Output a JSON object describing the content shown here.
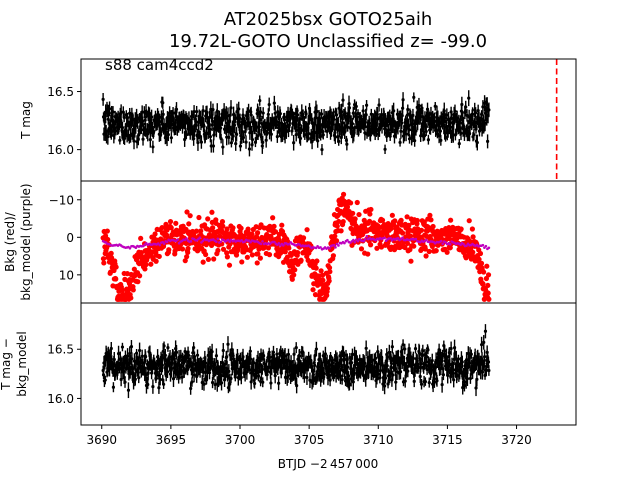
{
  "title_line1": "AT2025bsx  GOTO25aih",
  "title_line2": "19.72L-GOTO Unclassified z= -99.0",
  "chart_data": [
    {
      "type": "scatter",
      "panel": "top",
      "annotation": "s88 cam4ccd2",
      "ylabel": "T mag",
      "y_inverted": true,
      "ylim": [
        16.78,
        15.73
      ],
      "yticks": [
        "16.0",
        "16.5"
      ],
      "ytick_values": [
        16.0,
        16.5
      ],
      "series": [
        {
          "color": "#000000",
          "x_range": [
            3690.1,
            3718.0
          ],
          "y_center": 16.22,
          "y_scatter": 0.17,
          "ingress_gaps": [
            3690.2,
            3691.0,
            3691.9
          ]
        }
      ],
      "vline": {
        "x": 3722.9,
        "color": "#ff0000",
        "style": "dashed"
      }
    },
    {
      "type": "scatter",
      "panel": "middle",
      "ylabel_line1": "Bkg (red)/",
      "ylabel_line2": "bkg_model (purple)",
      "ylim": [
        -15,
        17.5
      ],
      "yticks": [
        "10",
        "0",
        "−10"
      ],
      "ytick_values": [
        10,
        0,
        -10
      ],
      "series": [
        {
          "color": "#ff0000",
          "role": "background",
          "x": [
            3690.1,
            3690.4,
            3690.8,
            3691.2,
            3691.6,
            3692.0,
            3692.3,
            3692.8,
            3693.5,
            3694.5,
            3695.5,
            3696.5,
            3697.5,
            3698.5,
            3699.5,
            3700.5,
            3701.5,
            3702.5,
            3703.3,
            3703.8,
            3704.2,
            3704.6,
            3705.0,
            3705.5,
            3706.0,
            3706.4,
            3706.8,
            3707.2,
            3707.6,
            3708.0,
            3708.5,
            3709.5,
            3710.5,
            3711.5,
            3712.5,
            3713.5,
            3714.5,
            3715.5,
            3716.3,
            3716.9,
            3717.3,
            3717.7,
            3718.0
          ],
          "y": [
            1.0,
            3.0,
            8.0,
            14.0,
            15.0,
            14.5,
            11.0,
            6.0,
            3.0,
            0.8,
            0.5,
            0.0,
            0.3,
            0.6,
            0.5,
            1.0,
            0.8,
            1.2,
            2.5,
            7.0,
            4.0,
            2.0,
            5.0,
            10.0,
            15.0,
            10.0,
            -1.0,
            -6.0,
            -9.0,
            -4.0,
            -2.0,
            -1.5,
            -1.0,
            -0.8,
            -0.5,
            -0.3,
            0.0,
            0.3,
            1.0,
            3.0,
            8.0,
            13.0,
            15.0
          ],
          "scatter": 3.0
        },
        {
          "color": "#bf00bf",
          "role": "bkg_model",
          "x": [
            3690.1,
            3691.0,
            3692.0,
            3693.0,
            3694.0,
            3695.0,
            3696.0,
            3697.0,
            3698.0,
            3699.0,
            3700.0,
            3701.0,
            3702.0,
            3703.0,
            3704.0,
            3705.0,
            3706.0,
            3707.0,
            3708.0,
            3709.0,
            3710.0,
            3711.0,
            3712.0,
            3713.0,
            3714.0,
            3715.0,
            3716.0,
            3717.0,
            3718.0
          ],
          "y": [
            1.5,
            2.0,
            2.8,
            2.2,
            1.5,
            1.0,
            0.8,
            0.6,
            0.8,
            1.0,
            1.0,
            1.2,
            1.5,
            1.8,
            2.0,
            2.5,
            3.0,
            2.0,
            1.0,
            0.5,
            0.3,
            0.5,
            0.8,
            1.0,
            1.2,
            1.5,
            1.8,
            2.2,
            2.5
          ]
        }
      ]
    },
    {
      "type": "scatter",
      "panel": "bottom",
      "ylabel_line1": "T mag −",
      "ylabel_line2": "bkg_model",
      "y_inverted": true,
      "ylim": [
        16.97,
        15.73
      ],
      "yticks": [
        "16.0",
        "16.5"
      ],
      "ytick_values": [
        16.0,
        16.5
      ],
      "xlabel": "BTJD −2 457 000",
      "xlim": [
        3688.5,
        3724.3
      ],
      "xticks": [
        "3690",
        "3695",
        "3700",
        "3705",
        "3710",
        "3715",
        "3720"
      ],
      "xtick_values": [
        3690,
        3695,
        3700,
        3705,
        3710,
        3715,
        3720
      ],
      "series": [
        {
          "color": "#000000",
          "x_range": [
            3690.1,
            3718.0
          ],
          "y_center": 16.33,
          "y_scatter": 0.2
        }
      ]
    }
  ]
}
